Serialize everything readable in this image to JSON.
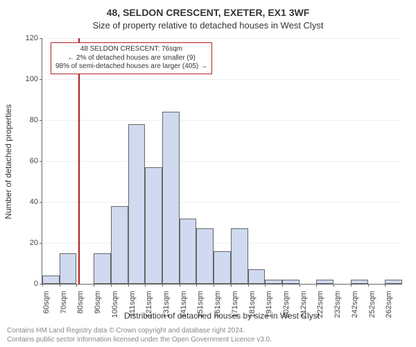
{
  "title": "48, SELDON CRESCENT, EXETER, EX1 3WF",
  "subtitle": "Size of property relative to detached houses in West Clyst",
  "y_axis_label": "Number of detached properties",
  "x_axis_label": "Distribution of detached houses by size in West Clyst",
  "annotation": {
    "line1": "48 SELDON CRESCENT: 76sqm",
    "line2": "← 2% of detached houses are smaller (9)",
    "line3": "98% of semi-detached houses are larger (405) →"
  },
  "footer": {
    "line1": "Contains HM Land Registry data © Crown copyright and database right 2024.",
    "line2": "Contains public sector information licensed under the Open Government Licence v3.0."
  },
  "chart": {
    "type": "histogram",
    "ylim": [
      0,
      120
    ],
    "ytick_step": 20,
    "x_categories": [
      "60sqm",
      "70sqm",
      "80sqm",
      "90sqm",
      "100sqm",
      "111sqm",
      "121sqm",
      "131sqm",
      "141sqm",
      "151sqm",
      "161sqm",
      "171sqm",
      "181sqm",
      "191sqm",
      "202sqm",
      "212sqm",
      "222sqm",
      "232sqm",
      "242sqm",
      "252sqm",
      "262sqm"
    ],
    "values": [
      4,
      15,
      0,
      15,
      38,
      78,
      57,
      84,
      32,
      27,
      16,
      27,
      7,
      2,
      2,
      0,
      2,
      0,
      2,
      0,
      2
    ],
    "bar_color": "#cfd9ef",
    "bar_border_color": "#666666",
    "background_color": "#ffffff",
    "grid_color": "#eeeeee",
    "marker_color": "#b02020",
    "marker_bin_index": 2,
    "marker_fraction_in_bin": 0.1,
    "title_fontsize": 14,
    "label_fontsize": 12,
    "tick_fontsize": 11
  }
}
